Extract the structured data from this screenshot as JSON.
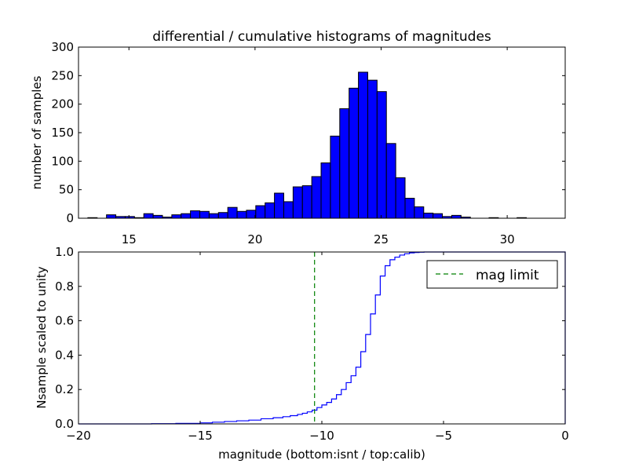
{
  "chart_data": [
    {
      "type": "bar",
      "title": "differential / cumulative histograms of magnitudes",
      "xlabel": "",
      "ylabel": "number of samples",
      "xlim": [
        13.0,
        32.3
      ],
      "ylim": [
        0,
        300
      ],
      "x_ticks": [
        15,
        20,
        25,
        30
      ],
      "y_ticks": [
        0,
        50,
        100,
        150,
        200,
        250,
        300
      ],
      "x_tick_labels": [
        "15",
        "20",
        "25",
        "30"
      ],
      "y_tick_labels": [
        "0",
        "50",
        "100",
        "150",
        "200",
        "250",
        "300"
      ],
      "bar_color": "#0000ff",
      "bin_width": 0.37,
      "bin_edges_start": 13.0,
      "values": [
        0,
        1,
        0,
        6,
        3,
        3,
        1,
        8,
        5,
        2,
        6,
        8,
        13,
        12,
        8,
        10,
        19,
        12,
        14,
        22,
        27,
        44,
        29,
        55,
        57,
        73,
        97,
        144,
        192,
        228,
        256,
        242,
        222,
        131,
        71,
        35,
        20,
        9,
        8,
        3,
        5,
        2,
        0,
        0,
        1,
        0,
        0,
        1,
        0,
        0,
        0,
        0
      ]
    },
    {
      "type": "line",
      "title": "",
      "xlabel": "magnitude (bottom:isnt / top:calib)",
      "ylabel": "Nsample scaled to unity",
      "xlim": [
        -20,
        0
      ],
      "ylim": [
        0.0,
        1.0
      ],
      "x_ticks": [
        -20,
        -15,
        -10,
        -5,
        0
      ],
      "y_ticks": [
        0.0,
        0.2,
        0.4,
        0.6,
        0.8,
        1.0
      ],
      "x_tick_labels": [
        "−20",
        "−15",
        "−10",
        "−5",
        "0"
      ],
      "y_tick_labels": [
        "0.0",
        "0.2",
        "0.4",
        "0.6",
        "0.8",
        "1.0"
      ],
      "legend": "upper right",
      "series": [
        {
          "type": "step",
          "color": "#0000ff",
          "x": [
            -20.0,
            -17.0,
            -16.0,
            -15.0,
            -14.5,
            -14.0,
            -13.5,
            -13.0,
            -12.5,
            -12.0,
            -11.6,
            -11.3,
            -11.0,
            -10.8,
            -10.6,
            -10.4,
            -10.2,
            -10.0,
            -9.8,
            -9.6,
            -9.4,
            -9.2,
            -9.0,
            -8.8,
            -8.6,
            -8.4,
            -8.2,
            -8.0,
            -7.8,
            -7.6,
            -7.4,
            -7.2,
            -7.0,
            -6.8,
            -6.6,
            -6.4,
            -6.2,
            -6.0,
            -5.8,
            -5.5,
            -5.0,
            0.0
          ],
          "y": [
            0.0,
            0.001,
            0.003,
            0.006,
            0.01,
            0.014,
            0.018,
            0.022,
            0.03,
            0.036,
            0.042,
            0.048,
            0.055,
            0.062,
            0.07,
            0.08,
            0.095,
            0.11,
            0.125,
            0.145,
            0.17,
            0.2,
            0.24,
            0.28,
            0.33,
            0.42,
            0.52,
            0.64,
            0.75,
            0.86,
            0.92,
            0.955,
            0.97,
            0.982,
            0.99,
            0.995,
            0.997,
            0.999,
            1.0,
            1.0,
            1.0,
            1.0
          ]
        },
        {
          "type": "vline",
          "name": "mag limit",
          "color": "#007f00",
          "x": -10.3
        }
      ]
    }
  ]
}
